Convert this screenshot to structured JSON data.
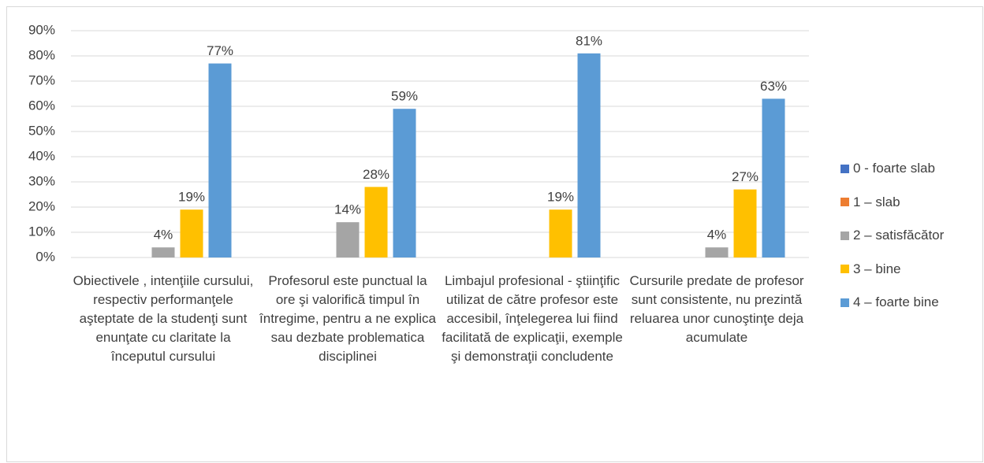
{
  "chart_data": {
    "type": "bar",
    "categories": [
      "Obiectivele , intenţiile cursului, respectiv performanţele aşteptate de la studenţi sunt enunţate cu claritate la începutul cursului",
      "Profesorul este punctual la ore şi valorifică timpul în întregime, pentru a ne explica sau dezbate problematica disciplinei",
      "Limbajul profesional - ştiinţific utilizat de către profesor  este accesibil, înţelegerea lui fiind  facilitată de explicaţii, exemple şi demonstraţii concludente",
      "Cursurile predate  de profesor  sunt consistente, nu prezintă reluarea unor cunoştinţe deja acumulate"
    ],
    "series": [
      {
        "name": "0 - foarte slab",
        "color": "#4472c4",
        "values": [
          null,
          null,
          null,
          null
        ]
      },
      {
        "name": "1 – slab",
        "color": "#ed7d31",
        "values": [
          null,
          null,
          null,
          null
        ]
      },
      {
        "name": "2 – satisfăcător",
        "color": "#a5a5a5",
        "values": [
          4,
          14,
          null,
          4
        ],
        "value_labels": [
          "4%",
          "14%",
          null,
          "4%"
        ]
      },
      {
        "name": "3 – bine",
        "color": "#ffc000",
        "values": [
          19,
          28,
          19,
          27
        ],
        "value_labels": [
          "19%",
          "28%",
          "19%",
          "27%"
        ]
      },
      {
        "name": "4 – foarte bine",
        "color": "#5b9bd5",
        "values": [
          77,
          59,
          81,
          63
        ],
        "value_labels": [
          "77%",
          "59%",
          "81%",
          "63%"
        ]
      }
    ],
    "ylim": [
      0,
      90
    ],
    "yticks": [
      {
        "value": 0,
        "label": "0%"
      },
      {
        "value": 10,
        "label": "10%"
      },
      {
        "value": 20,
        "label": "20%"
      },
      {
        "value": 30,
        "label": "30%"
      },
      {
        "value": 40,
        "label": "40%"
      },
      {
        "value": 50,
        "label": "50%"
      },
      {
        "value": 60,
        "label": "60%"
      },
      {
        "value": 70,
        "label": "70%"
      },
      {
        "value": 80,
        "label": "80%"
      },
      {
        "value": 90,
        "label": "90%"
      }
    ],
    "grid": true,
    "legend": "right"
  }
}
